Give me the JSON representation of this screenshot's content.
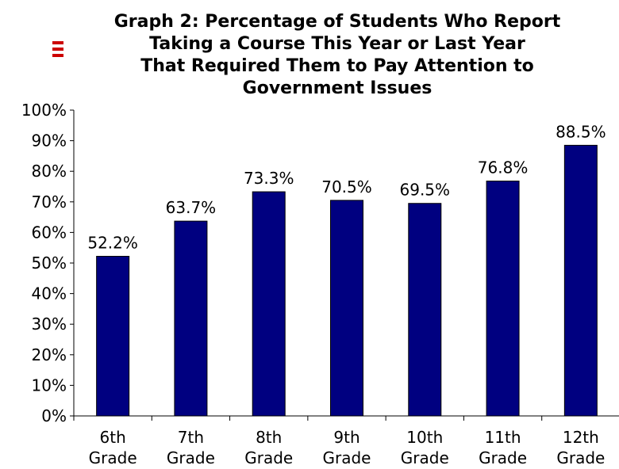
{
  "colors": {
    "bar": "#000080",
    "axis": "#000000",
    "menu_icon": "#cc0000"
  },
  "icons": {
    "menu": "menu-icon"
  },
  "chart_data": {
    "type": "bar",
    "title_lines": [
      "Graph 2:  Percentage of Students Who Report",
      "Taking a Course This Year or Last Year",
      "That Required Them to Pay Attention to",
      "Government Issues"
    ],
    "categories": [
      [
        "6th",
        "Grade"
      ],
      [
        "7th",
        "Grade"
      ],
      [
        "8th",
        "Grade"
      ],
      [
        "9th",
        "Grade"
      ],
      [
        "10th",
        "Grade"
      ],
      [
        "11th",
        "Grade"
      ],
      [
        "12th",
        "Grade"
      ]
    ],
    "values": [
      52.2,
      63.7,
      73.3,
      70.5,
      69.5,
      76.8,
      88.5
    ],
    "value_labels": [
      "52.2%",
      "63.7%",
      "73.3%",
      "70.5%",
      "69.5%",
      "76.8%",
      "88.5%"
    ],
    "ylim": [
      0,
      100
    ],
    "y_ticks": [
      0,
      10,
      20,
      30,
      40,
      50,
      60,
      70,
      80,
      90,
      100
    ],
    "y_tick_labels": [
      "0%",
      "10%",
      "20%",
      "30%",
      "40%",
      "50%",
      "60%",
      "70%",
      "80%",
      "90%",
      "100%"
    ],
    "grid": false,
    "legend": "none"
  }
}
